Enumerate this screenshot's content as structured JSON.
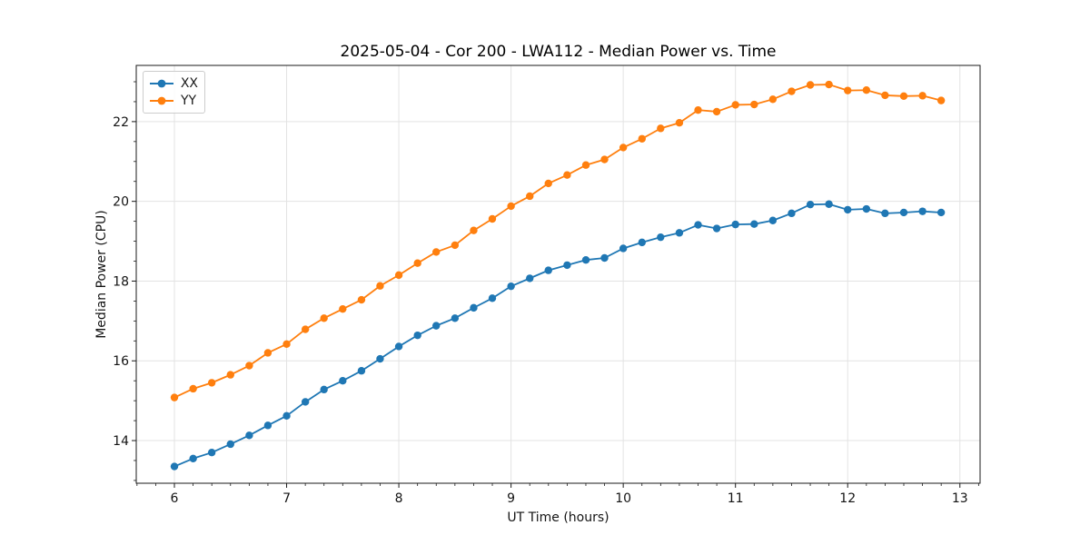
{
  "figure": {
    "background_color": "#ffffff",
    "title": "2025-05-04 - Cor 200 - LWA112 - Median Power vs. Time"
  },
  "chart_data": {
    "type": "line",
    "title": "2025-05-04 - Cor 200 - LWA112 - Median Power vs. Time",
    "xlabel": "UT Time (hours)",
    "ylabel": "Median Power (CPU)",
    "xlim": [
      5.66,
      13.18
    ],
    "ylim": [
      12.93,
      23.41
    ],
    "x_ticks": [
      6,
      7,
      8,
      9,
      10,
      11,
      12,
      13
    ],
    "y_ticks": [
      14,
      16,
      18,
      20,
      22
    ],
    "x_minor_step": 0.1666667,
    "y_minor_step": 0.5,
    "grid": true,
    "grid_color": "#e3e3e3",
    "spine_color": "#1a1a1a",
    "legend_position": "upper left",
    "x": [
      6.0,
      6.167,
      6.333,
      6.5,
      6.667,
      6.833,
      7.0,
      7.167,
      7.333,
      7.5,
      7.667,
      7.833,
      8.0,
      8.167,
      8.333,
      8.5,
      8.667,
      8.833,
      9.0,
      9.167,
      9.333,
      9.5,
      9.667,
      9.833,
      10.0,
      10.167,
      10.333,
      10.5,
      10.667,
      10.833,
      11.0,
      11.167,
      11.333,
      11.5,
      11.667,
      11.833,
      12.0,
      12.167,
      12.333,
      12.5,
      12.667,
      12.833
    ],
    "series": [
      {
        "name": "XX",
        "color": "#1f77b4",
        "marker": "circle",
        "values": [
          13.35,
          13.55,
          13.7,
          13.91,
          14.13,
          14.38,
          14.62,
          14.97,
          15.28,
          15.5,
          15.75,
          16.05,
          16.36,
          16.64,
          16.88,
          17.07,
          17.33,
          17.57,
          17.87,
          18.07,
          18.27,
          18.4,
          18.53,
          18.58,
          18.82,
          18.97,
          19.1,
          19.21,
          19.41,
          19.32,
          19.42,
          19.43,
          19.52,
          19.7,
          19.92,
          19.93,
          19.79,
          19.81,
          19.7,
          19.72,
          19.75,
          19.72
        ]
      },
      {
        "name": "YY",
        "color": "#ff7f0e",
        "marker": "circle",
        "values": [
          15.08,
          15.3,
          15.45,
          15.65,
          15.88,
          16.2,
          16.42,
          16.79,
          17.07,
          17.3,
          17.53,
          17.88,
          18.15,
          18.45,
          18.73,
          18.9,
          19.27,
          19.56,
          19.88,
          20.13,
          20.45,
          20.66,
          20.91,
          21.05,
          21.35,
          21.57,
          21.83,
          21.97,
          22.29,
          22.25,
          22.42,
          22.43,
          22.56,
          22.76,
          22.92,
          22.93,
          22.78,
          22.79,
          22.66,
          22.64,
          22.65,
          22.53
        ]
      }
    ]
  }
}
